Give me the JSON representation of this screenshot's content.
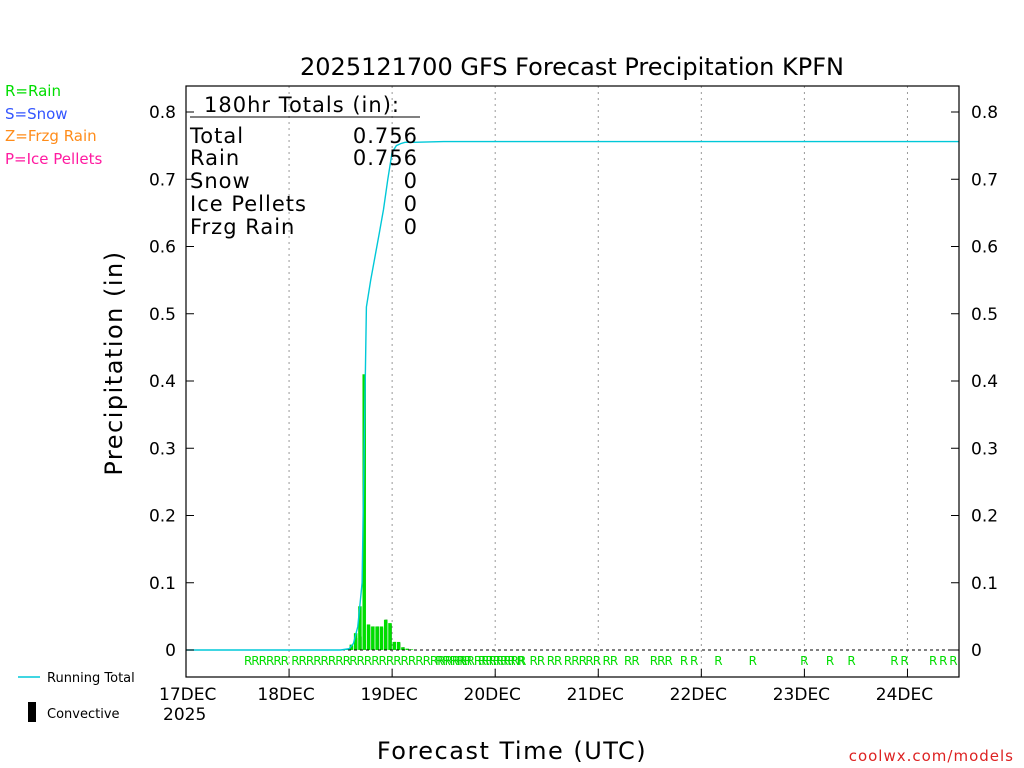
{
  "chart_data": {
    "type": "bar",
    "title": "2025121700 GFS Forecast Precipitation KPFN",
    "ylabel": "Precipitation (in)",
    "xlabel": "Forecast Time (UTC)",
    "ylim": [
      0,
      0.83
    ],
    "yticks": [
      0,
      0.1,
      0.2,
      0.3,
      0.4,
      0.5,
      0.6,
      0.7,
      0.8
    ],
    "ytick_labels": [
      "0",
      "0.1",
      "0.2",
      "0.3",
      "0.4",
      "0.5",
      "0.6",
      "0.7",
      "0.8"
    ],
    "x_range_hours": [
      0,
      180
    ],
    "x_ticks": [
      {
        "hour": 0,
        "label": "17DEC"
      },
      {
        "hour": 24,
        "label": "18DEC"
      },
      {
        "hour": 48,
        "label": "19DEC"
      },
      {
        "hour": 72,
        "label": "20DEC"
      },
      {
        "hour": 96,
        "label": "21DEC"
      },
      {
        "hour": 120,
        "label": "22DEC"
      },
      {
        "hour": 144,
        "label": "23DEC"
      },
      {
        "hour": 168,
        "label": "24DEC"
      }
    ],
    "year_label": "2025",
    "grid": "vertical dotted",
    "series": [
      {
        "name": "Rain",
        "kind": "bar",
        "color": "#00dd00",
        "x": [
          38,
          39,
          40,
          41,
          42,
          43,
          44,
          45,
          46,
          47,
          48,
          49,
          50,
          51,
          52,
          53
        ],
        "values": [
          0.002,
          0.008,
          0.025,
          0.065,
          0.41,
          0.038,
          0.035,
          0.035,
          0.035,
          0.045,
          0.04,
          0.012,
          0.012,
          0.004,
          0.002,
          0.001
        ]
      },
      {
        "name": "Convective",
        "kind": "bar",
        "color": "#000000",
        "x": [
          39,
          40,
          41,
          42,
          43,
          44,
          45,
          46,
          47,
          48,
          49,
          50,
          51
        ],
        "values": [
          0.006,
          0.018,
          0.02,
          0.015,
          0.035,
          0.035,
          0.035,
          0.033,
          0.045,
          0.038,
          0.012,
          0.01,
          0.004
        ]
      },
      {
        "name": "Running Total",
        "kind": "line",
        "color": "#00c8d8",
        "x": [
          0,
          36,
          38,
          39,
          40,
          41,
          42,
          43,
          44,
          45,
          46,
          47,
          48,
          49,
          50,
          51,
          53,
          60,
          180
        ],
        "values": [
          0,
          0,
          0.002,
          0.01,
          0.035,
          0.1,
          0.51,
          0.55,
          0.585,
          0.62,
          0.655,
          0.7,
          0.74,
          0.75,
          0.753,
          0.755,
          0.755,
          0.756,
          0.756
        ]
      }
    ],
    "precip_type_marks": [
      {
        "hour": 13.5,
        "label": "RRRRRR"
      },
      {
        "hour": 24.5,
        "label": "RRRRRRRR"
      },
      {
        "hour": 38,
        "label": "RRRRRRRRRRRRRRRRRRRRRRRR"
      },
      {
        "hour": 58,
        "label": "RRRR"
      },
      {
        "hour": 63,
        "label": "RR"
      },
      {
        "hour": 68,
        "label": "RRRRR"
      },
      {
        "hour": 77,
        "label": "R"
      },
      {
        "hour": 80,
        "label": "RR"
      },
      {
        "hour": 84,
        "label": "RR"
      },
      {
        "hour": 88,
        "label": "RRR"
      },
      {
        "hour": 93,
        "label": "RR"
      },
      {
        "hour": 97,
        "label": "RR"
      },
      {
        "hour": 102,
        "label": "RR"
      },
      {
        "hour": 108,
        "label": "RRR"
      },
      {
        "hour": 115,
        "label": "R R"
      },
      {
        "hour": 123,
        "label": "R"
      },
      {
        "hour": 131,
        "label": "R"
      },
      {
        "hour": 143,
        "label": "R"
      },
      {
        "hour": 149,
        "label": "R"
      },
      {
        "hour": 154,
        "label": "R"
      },
      {
        "hour": 164,
        "label": "R R"
      },
      {
        "hour": 173,
        "label": "R R R"
      }
    ]
  },
  "totals": {
    "header": "180hr Totals (in):",
    "rows": [
      {
        "label": "Total",
        "value": "0.756"
      },
      {
        "label": "Rain",
        "value": "0.756"
      },
      {
        "label": "Snow",
        "value": "0"
      },
      {
        "label": "Ice Pellets",
        "value": "0"
      },
      {
        "label": "Frzg Rain",
        "value": "0"
      }
    ]
  },
  "type_legend": [
    {
      "text": "R=Rain",
      "color": "#00dd00"
    },
    {
      "text": "S=Snow",
      "color": "#3355ff"
    },
    {
      "text": "Z=Frzg Rain",
      "color": "#ff8c1a"
    },
    {
      "text": "P=Ice Pellets",
      "color": "#ff1aa0"
    }
  ],
  "series_legend": {
    "running_total": "Running Total",
    "convective": "Convective"
  },
  "credit": {
    "text": "coolwx.com/models",
    "color": "#dd2222"
  }
}
